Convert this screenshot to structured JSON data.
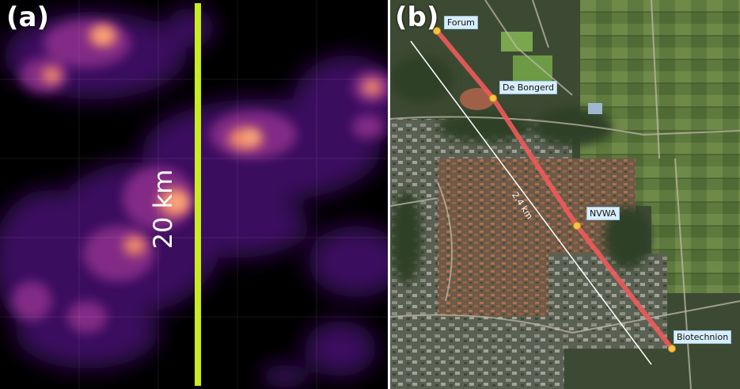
{
  "panel_a": {
    "label": "(a)",
    "scale_text": "20 km",
    "colors": {
      "background": "#000000",
      "scale_line": "#c8ec1c",
      "heatmap_low": "#3a0d5e",
      "heatmap_mid": "#a93b8f",
      "heatmap_high": "#ffb870"
    },
    "icon": "heatmap-image"
  },
  "panel_b": {
    "label": "(b)",
    "distance_label": "2.4 km",
    "locations": [
      {
        "name": "Forum"
      },
      {
        "name": "De Bongerd"
      },
      {
        "name": "NVWA"
      },
      {
        "name": "Biotechnion"
      }
    ],
    "colors": {
      "route_line": "#f05a5a",
      "marker": "#f5c542",
      "label_bg": "#d8eefc",
      "straight_line": "#ffffff"
    },
    "icon": "satellite-map-image"
  }
}
